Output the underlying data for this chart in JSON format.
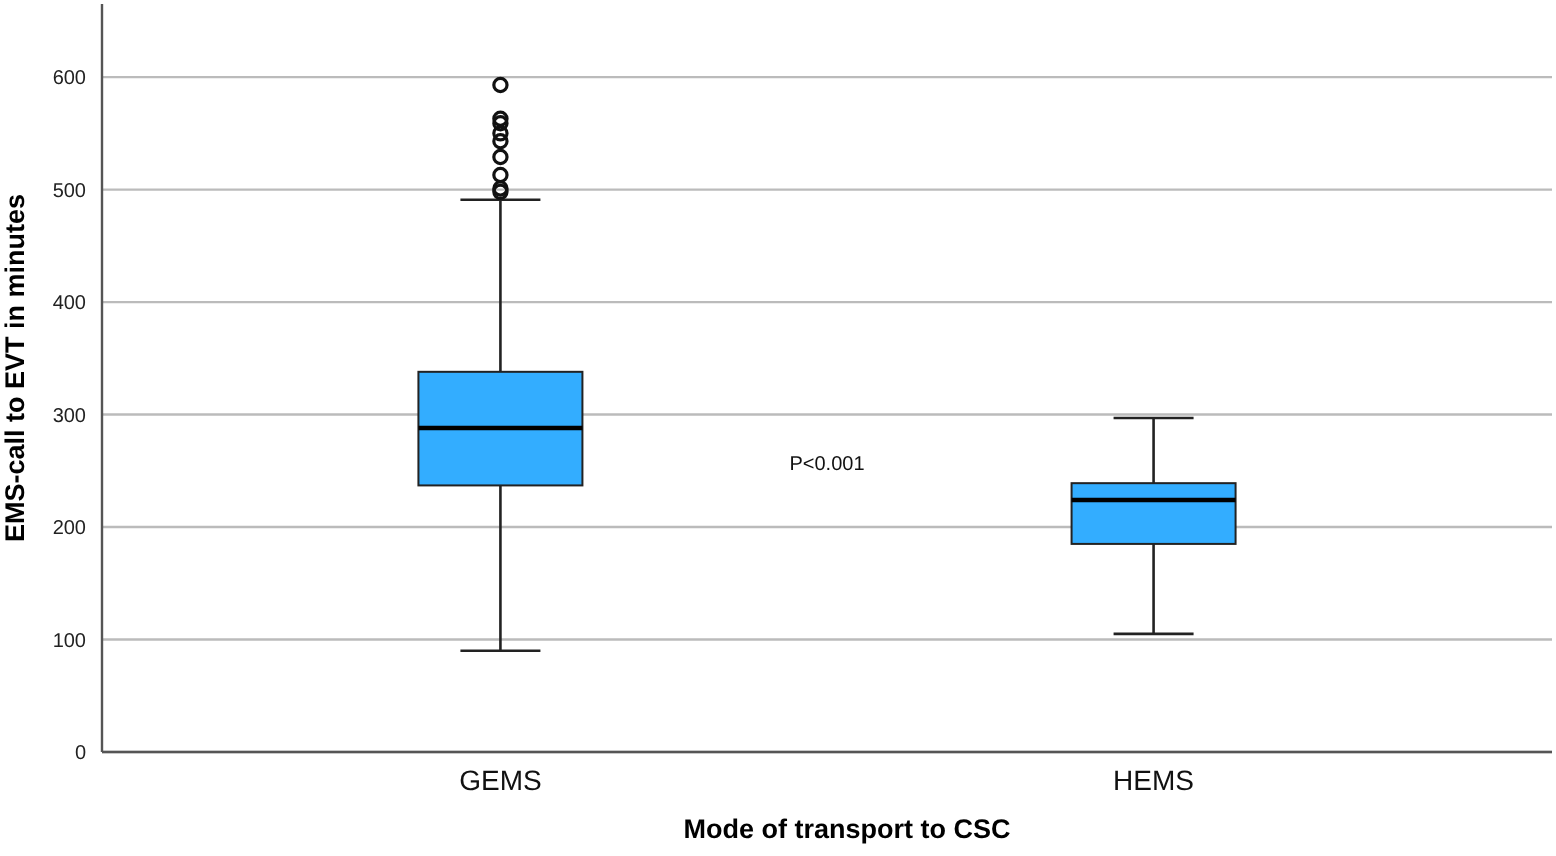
{
  "chart_data": {
    "type": "box",
    "xlabel": "Mode of transport to CSC",
    "ylabel": "EMS-call to EVT in minutes",
    "categories": [
      "GEMS",
      "HEMS"
    ],
    "color": "#33adff",
    "ylim": [
      0,
      665
    ],
    "yticks": [
      0,
      100,
      200,
      300,
      400,
      500,
      600
    ],
    "grid": "y",
    "annotations": [
      "P<0.001"
    ],
    "boxes": [
      {
        "low": 90,
        "q1": 237,
        "median": 288,
        "q3": 338,
        "high": 491,
        "outliers": [
          593,
          563,
          559,
          550,
          543,
          529,
          513,
          501,
          498
        ]
      },
      {
        "low": 105,
        "q1": 185,
        "median": 224,
        "q3": 239,
        "high": 297
      }
    ]
  }
}
